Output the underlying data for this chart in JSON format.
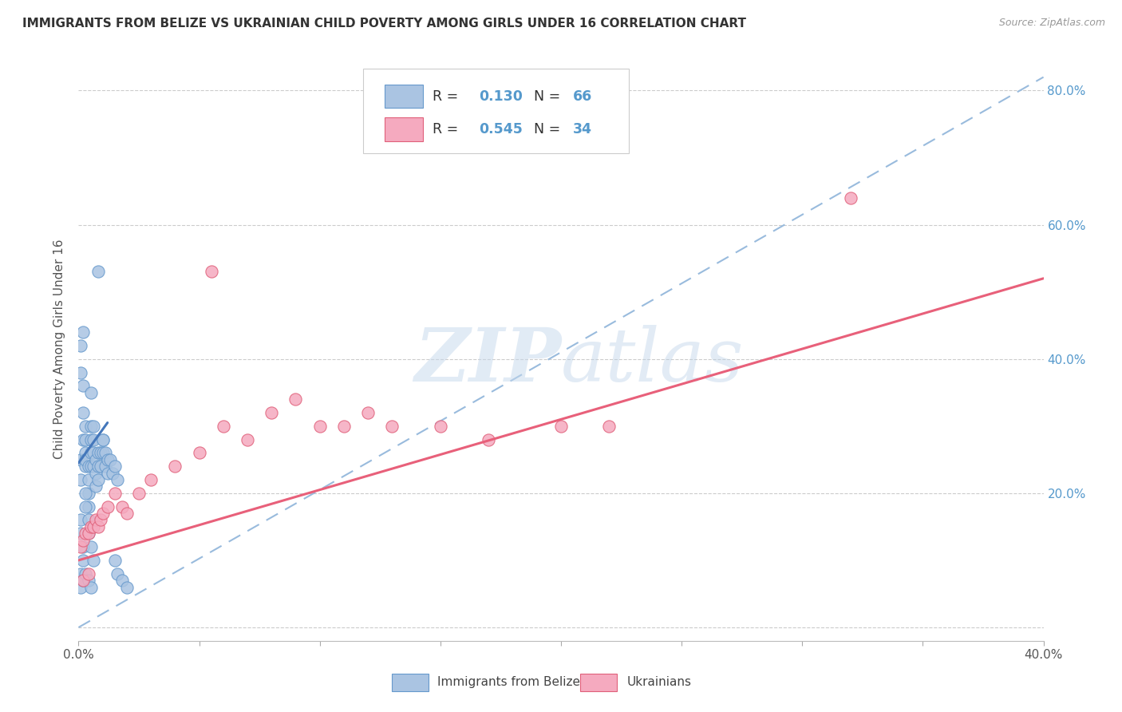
{
  "title": "IMMIGRANTS FROM BELIZE VS UKRAINIAN CHILD POVERTY AMONG GIRLS UNDER 16 CORRELATION CHART",
  "source": "Source: ZipAtlas.com",
  "ylabel": "Child Poverty Among Girls Under 16",
  "xlim": [
    0.0,
    0.4
  ],
  "ylim": [
    -0.02,
    0.85
  ],
  "belize_color": "#aac4e2",
  "belize_edge_color": "#6699cc",
  "ukraine_color": "#f5aabf",
  "ukraine_edge_color": "#e0607a",
  "belize_line_color": "#4477bb",
  "ukraine_line_color": "#e8607a",
  "dashed_line_color": "#99bbdd",
  "R_belize": 0.13,
  "N_belize": 66,
  "R_ukraine": 0.545,
  "N_ukraine": 34,
  "legend_label_belize": "Immigrants from Belize",
  "legend_label_ukraine": "Ukrainians",
  "watermark_zip": "ZIP",
  "watermark_atlas": "atlas",
  "background_color": "#ffffff",
  "grid_color": "#cccccc",
  "right_axis_color": "#5599cc",
  "title_color": "#333333",
  "source_color": "#999999",
  "ylabel_color": "#555555",
  "xtick_color": "#555555",
  "belize_x": [
    0.001,
    0.001,
    0.002,
    0.001,
    0.001,
    0.002,
    0.002,
    0.002,
    0.003,
    0.003,
    0.003,
    0.003,
    0.003,
    0.004,
    0.004,
    0.004,
    0.004,
    0.005,
    0.005,
    0.005,
    0.005,
    0.005,
    0.006,
    0.006,
    0.006,
    0.006,
    0.007,
    0.007,
    0.007,
    0.008,
    0.008,
    0.008,
    0.009,
    0.009,
    0.01,
    0.01,
    0.011,
    0.011,
    0.012,
    0.012,
    0.013,
    0.014,
    0.015,
    0.016,
    0.001,
    0.001,
    0.002,
    0.002,
    0.003,
    0.003,
    0.004,
    0.004,
    0.005,
    0.006,
    0.001,
    0.001,
    0.002,
    0.003,
    0.004,
    0.005,
    0.008,
    0.01,
    0.015,
    0.016,
    0.018,
    0.02
  ],
  "belize_y": [
    0.25,
    0.22,
    0.44,
    0.42,
    0.38,
    0.36,
    0.32,
    0.28,
    0.26,
    0.24,
    0.3,
    0.28,
    0.25,
    0.24,
    0.22,
    0.2,
    0.18,
    0.35,
    0.3,
    0.28,
    0.26,
    0.24,
    0.3,
    0.28,
    0.26,
    0.24,
    0.25,
    0.23,
    0.21,
    0.26,
    0.24,
    0.22,
    0.26,
    0.24,
    0.28,
    0.26,
    0.26,
    0.24,
    0.25,
    0.23,
    0.25,
    0.23,
    0.24,
    0.22,
    0.16,
    0.14,
    0.12,
    0.1,
    0.2,
    0.18,
    0.16,
    0.14,
    0.12,
    0.1,
    0.08,
    0.06,
    0.07,
    0.08,
    0.07,
    0.06,
    0.53,
    0.28,
    0.1,
    0.08,
    0.07,
    0.06
  ],
  "ukraine_x": [
    0.001,
    0.002,
    0.003,
    0.004,
    0.005,
    0.006,
    0.007,
    0.008,
    0.009,
    0.01,
    0.012,
    0.015,
    0.018,
    0.02,
    0.025,
    0.03,
    0.04,
    0.05,
    0.06,
    0.07,
    0.08,
    0.09,
    0.1,
    0.11,
    0.12,
    0.13,
    0.15,
    0.17,
    0.2,
    0.22,
    0.002,
    0.004,
    0.32,
    0.055
  ],
  "ukraine_y": [
    0.12,
    0.13,
    0.14,
    0.14,
    0.15,
    0.15,
    0.16,
    0.15,
    0.16,
    0.17,
    0.18,
    0.2,
    0.18,
    0.17,
    0.2,
    0.22,
    0.24,
    0.26,
    0.3,
    0.28,
    0.32,
    0.34,
    0.3,
    0.3,
    0.32,
    0.3,
    0.3,
    0.28,
    0.3,
    0.3,
    0.07,
    0.08,
    0.64,
    0.53
  ],
  "belize_line_x": [
    0.0,
    0.012
  ],
  "belize_line_y": [
    0.245,
    0.305
  ],
  "ukraine_line_x": [
    0.0,
    0.4
  ],
  "ukraine_line_y": [
    0.1,
    0.52
  ],
  "dash_line_x": [
    0.0,
    0.4
  ],
  "dash_line_y": [
    0.0,
    0.82
  ]
}
